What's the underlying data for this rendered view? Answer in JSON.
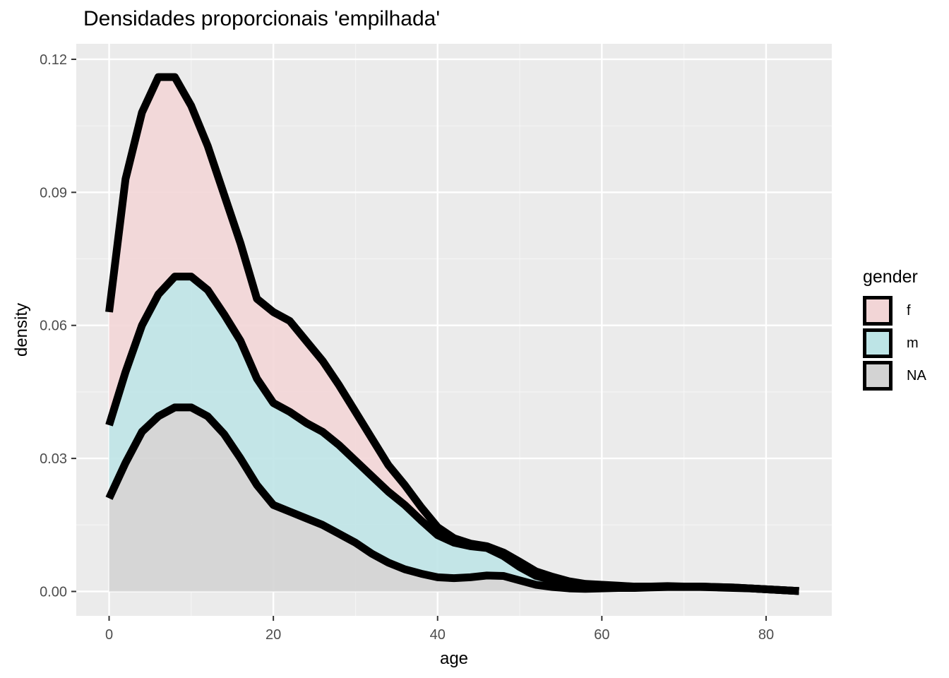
{
  "title": "Densidades proporcionais 'empilhada'",
  "chart_data": {
    "type": "area",
    "stacked": true,
    "title": "Densidades proporcionais 'empilhada'",
    "xlabel": "age",
    "ylabel": "density",
    "xlim": [
      -4,
      88
    ],
    "ylim": [
      -0.0055,
      0.1235
    ],
    "x_ticks": [
      0,
      20,
      40,
      60,
      80
    ],
    "y_ticks": [
      0.0,
      0.03,
      0.06,
      0.09,
      0.12
    ],
    "x_tick_labels": [
      "0",
      "20",
      "40",
      "60",
      "80"
    ],
    "y_tick_labels": [
      "0.00",
      "0.03",
      "0.06",
      "0.09",
      "0.12"
    ],
    "grid": true,
    "legend_position": "right",
    "legend_title": "gender",
    "x": [
      0,
      2,
      4,
      6,
      8,
      10,
      12,
      14,
      16,
      18,
      20,
      22,
      24,
      26,
      28,
      30,
      32,
      34,
      36,
      38,
      40,
      42,
      44,
      46,
      48,
      50,
      52,
      54,
      56,
      58,
      60,
      62,
      64,
      66,
      68,
      70,
      72,
      74,
      76,
      78,
      80,
      82,
      84
    ],
    "series": [
      {
        "name": "NA",
        "color": "#d3d3d3",
        "values": [
          0.021,
          0.029,
          0.036,
          0.0395,
          0.0415,
          0.0415,
          0.0395,
          0.0355,
          0.03,
          0.024,
          0.0195,
          0.018,
          0.0165,
          0.015,
          0.013,
          0.011,
          0.0085,
          0.0065,
          0.005,
          0.004,
          0.0032,
          0.003,
          0.0032,
          0.0036,
          0.0035,
          0.0025,
          0.0015,
          0.001,
          0.0007,
          0.0006,
          0.0007,
          0.0008,
          0.0008,
          0.0009,
          0.001,
          0.001,
          0.001,
          0.0009,
          0.0008,
          0.0007,
          0.0005,
          0.0003,
          0.0001
        ]
      },
      {
        "name": "m",
        "color": "#bde4e6",
        "values": [
          0.0165,
          0.0205,
          0.024,
          0.0275,
          0.0295,
          0.0295,
          0.0285,
          0.027,
          0.0265,
          0.024,
          0.023,
          0.0225,
          0.0215,
          0.021,
          0.02,
          0.0185,
          0.0175,
          0.016,
          0.0145,
          0.012,
          0.0095,
          0.008,
          0.007,
          0.0062,
          0.0045,
          0.003,
          0.002,
          0.0015,
          0.001,
          0.0007,
          0.0005,
          0.0003,
          0.0002,
          0.0001,
          0.0001,
          0.0001,
          0.0001,
          0.0001,
          0.0001,
          0,
          0,
          0,
          0
        ]
      },
      {
        "name": "f",
        "color": "#f2d5d6",
        "values": [
          0.0255,
          0.0435,
          0.048,
          0.049,
          0.045,
          0.0385,
          0.0325,
          0.027,
          0.022,
          0.018,
          0.0205,
          0.0205,
          0.0185,
          0.016,
          0.0135,
          0.011,
          0.0085,
          0.006,
          0.0045,
          0.003,
          0.0018,
          0.001,
          0.0006,
          0.0004,
          0.0008,
          0.0012,
          0.001,
          0.0008,
          0.0006,
          0.0004,
          0.0003,
          0.0002,
          0.0001,
          0.0001,
          0.0001,
          0,
          0,
          0,
          0,
          0,
          0,
          0,
          0
        ]
      }
    ]
  }
}
